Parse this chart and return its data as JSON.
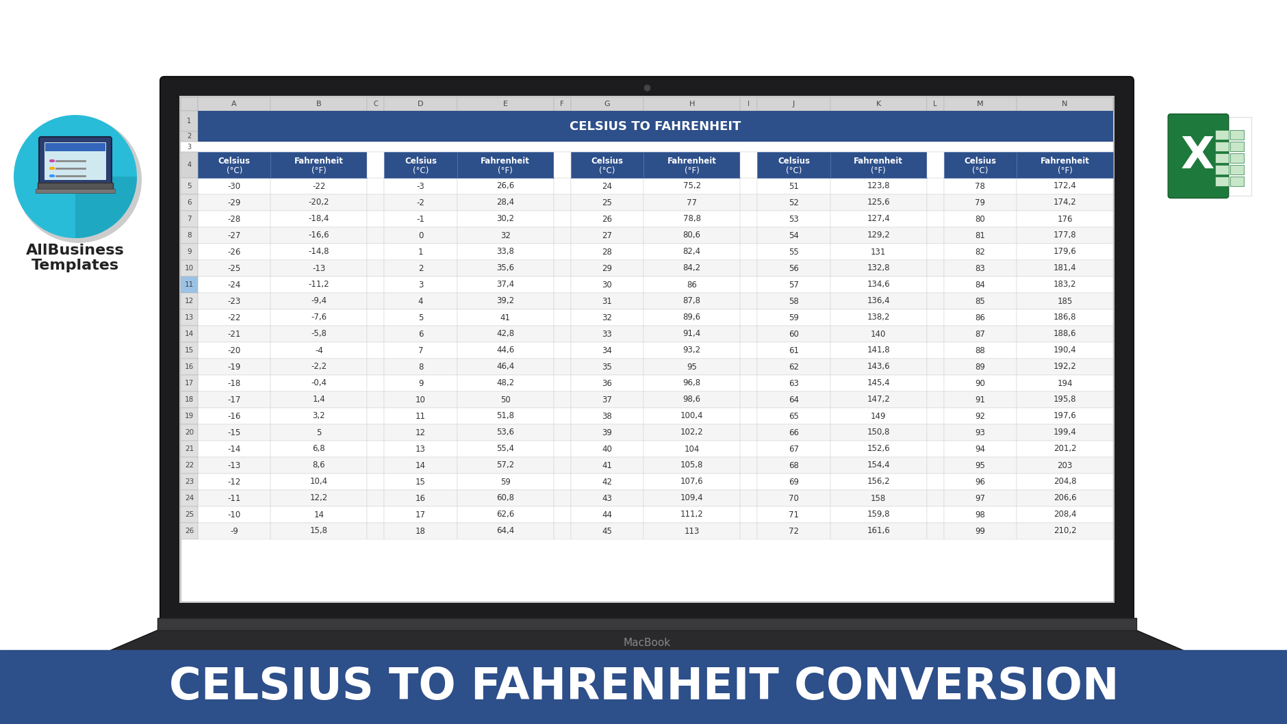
{
  "title": "CELSIUS TO FAHRENHEIT CONVERSION",
  "spreadsheet_title": "CELSIUS TO FAHRENHEIT",
  "background_color": "#ffffff",
  "bottom_bar_color": "#2d4f8a",
  "bottom_bar_text": "CELSIUS TO FAHRENHEIT CONVERSION",
  "col_header_bg": "#2d4f8a",
  "row_even_bg": "#ffffff",
  "row_odd_bg": "#f5f5f5",
  "grid_line_color": "#cccccc",
  "data_columns": [
    {
      "celsius": [
        -30,
        -29,
        -28,
        -27,
        -26,
        -25,
        -24,
        -23,
        -22,
        -21,
        -20,
        -19,
        -18,
        -17,
        -16,
        -15,
        -14,
        -13,
        -12,
        -11,
        -10,
        -9
      ],
      "fahrenheit": [
        -22,
        -20.2,
        -18.4,
        -16.6,
        -14.8,
        -13,
        -11.2,
        -9.4,
        -7.6,
        -5.8,
        -4,
        -2.2,
        -0.4,
        1.4,
        3.2,
        5,
        6.8,
        8.6,
        10.4,
        12.2,
        14,
        15.8
      ]
    },
    {
      "celsius": [
        -3,
        -2,
        -1,
        0,
        1,
        2,
        3,
        4,
        5,
        6,
        7,
        8,
        9,
        10,
        11,
        12,
        13,
        14,
        15,
        16,
        17,
        18
      ],
      "fahrenheit": [
        26.6,
        28.4,
        30.2,
        32,
        33.8,
        35.6,
        37.4,
        39.2,
        41,
        42.8,
        44.6,
        46.4,
        48.2,
        50,
        51.8,
        53.6,
        55.4,
        57.2,
        59,
        60.8,
        62.6,
        64.4
      ]
    },
    {
      "celsius": [
        24,
        25,
        26,
        27,
        28,
        29,
        30,
        31,
        32,
        33,
        34,
        35,
        36,
        37,
        38,
        39,
        40,
        41,
        42,
        43,
        44,
        45
      ],
      "fahrenheit": [
        75.2,
        77,
        78.8,
        80.6,
        82.4,
        84.2,
        86,
        87.8,
        89.6,
        91.4,
        93.2,
        95,
        96.8,
        98.6,
        100.4,
        102.2,
        104,
        105.8,
        107.6,
        109.4,
        111.2,
        113
      ]
    },
    {
      "celsius": [
        51,
        52,
        53,
        54,
        55,
        56,
        57,
        58,
        59,
        60,
        61,
        62,
        63,
        64,
        65,
        66,
        67,
        68,
        69,
        70,
        71,
        72
      ],
      "fahrenheit": [
        123.8,
        125.6,
        127.4,
        129.2,
        131,
        132.8,
        134.6,
        136.4,
        138.2,
        140,
        141.8,
        143.6,
        145.4,
        147.2,
        149,
        150.8,
        152.6,
        154.4,
        156.2,
        158,
        159.8,
        161.6
      ]
    },
    {
      "celsius": [
        78,
        79,
        80,
        81,
        82,
        83,
        84,
        85,
        86,
        87,
        88,
        89,
        90,
        91,
        92,
        93,
        94,
        95,
        96,
        97,
        98,
        99
      ],
      "fahrenheit": [
        172.4,
        174.2,
        176,
        177.8,
        179.6,
        181.4,
        183.2,
        185,
        186.8,
        188.6,
        190.4,
        192.2,
        194,
        195.8,
        197.6,
        199.4,
        201.2,
        203,
        204.8,
        206.6,
        208.4,
        210.2
      ]
    }
  ],
  "col_letters": [
    "A",
    "B",
    "C",
    "D",
    "E",
    "F",
    "G",
    "H",
    "I",
    "J",
    "K",
    "L",
    "M",
    "N"
  ],
  "laptop_outer_color": "#1c1c1e",
  "laptop_bezel_color": "#2a2a2c",
  "screen_bg": "#c8c8c8",
  "macbook_text_color": "#888888"
}
